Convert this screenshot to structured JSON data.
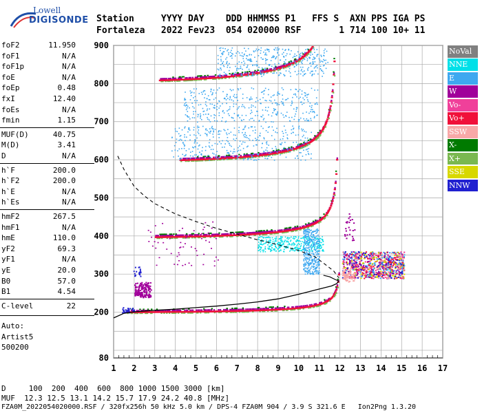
{
  "logo": {
    "line1": "Lowell",
    "line2": "DIGISONDE"
  },
  "header": {
    "line1": "Station     YYYY DAY    DDD HHMMSS P1   FFS S  AXN PPS IGA PS",
    "line2": "Fortaleza   2022 Fev23  054 020000 RSF       1 714 100 10+ 11"
  },
  "params": [
    {
      "name": "foF2",
      "value": "11.950"
    },
    {
      "name": "foF1",
      "value": "N/A"
    },
    {
      "name": "foF1p",
      "value": "N/A"
    },
    {
      "name": "foE",
      "value": "N/A"
    },
    {
      "name": "foEp",
      "value": "0.48"
    },
    {
      "name": "fxI",
      "value": "12.40"
    },
    {
      "name": "foEs",
      "value": "N/A"
    },
    {
      "name": "fmin",
      "value": "1.15"
    },
    {
      "name": "MUF(D)",
      "value": "40.75"
    },
    {
      "name": "M(D)",
      "value": "3.41"
    },
    {
      "name": "D",
      "value": "N/A"
    },
    {
      "name": "h`F",
      "value": "200.0"
    },
    {
      "name": "h`F2",
      "value": "200.0"
    },
    {
      "name": "h`E",
      "value": "N/A"
    },
    {
      "name": "h`Es",
      "value": "N/A"
    },
    {
      "name": "hmF2",
      "value": "267.5"
    },
    {
      "name": "hmF1",
      "value": "N/A"
    },
    {
      "name": "hmE",
      "value": "110.0"
    },
    {
      "name": "yF2",
      "value": "69.3"
    },
    {
      "name": "yF1",
      "value": "N/A"
    },
    {
      "name": "yE",
      "value": "20.0"
    },
    {
      "name": "B0",
      "value": "57.0"
    },
    {
      "name": "B1",
      "value": "4.54"
    },
    {
      "name": "C-level",
      "value": "22"
    }
  ],
  "auto": {
    "line1": "Auto:",
    "line2": "Artist5",
    "line3": "500200"
  },
  "legend": [
    {
      "label": "NoVal",
      "color": "#808080"
    },
    {
      "label": "NNE",
      "color": "#00e0e8"
    },
    {
      "label": "E",
      "color": "#3ea8f0"
    },
    {
      "label": "W",
      "color": "#a0009a"
    },
    {
      "label": "Vo-",
      "color": "#f0409a"
    },
    {
      "label": "Vo+",
      "color": "#f0103a"
    },
    {
      "label": "SSW",
      "color": "#f8a8a8"
    },
    {
      "label": "X-",
      "color": "#007a00"
    },
    {
      "label": "X+",
      "color": "#7ab850"
    },
    {
      "label": "SSE",
      "color": "#d8d800"
    },
    {
      "label": "NNW",
      "color": "#2020d0"
    }
  ],
  "footer": {
    "line1": "D     100  200  400  600  800 1000 1500 3000 [km]",
    "line2": "MUF  12.3 12.5 13.1 14.2 15.7 17.9 24.2 40.8 [MHz]",
    "line3": "FZA0M_2022054020000.RSF / 320fx256h 50 kHz 5.0 km / DPS-4 FZA0M 904 / 3.9 S 321.6 E   Ion2Png 1.3.20"
  },
  "chart_data": {
    "type": "scatter",
    "title": "",
    "xlabel": "",
    "ylabel": "",
    "xlim": [
      1,
      17
    ],
    "ylim": [
      80,
      900
    ],
    "xticks": [
      1,
      2,
      3,
      4,
      5,
      6,
      7,
      8,
      9,
      10,
      11,
      12,
      13,
      14,
      15,
      16,
      17
    ],
    "yticks": [
      80,
      200,
      300,
      400,
      500,
      600,
      700,
      800,
      900
    ],
    "grid": true,
    "traces": [
      {
        "name": "1F",
        "color": "#f0103a",
        "x0": 1.6,
        "h0": 202,
        "fc": 12.0
      },
      {
        "name": "2F",
        "color": "#f0103a",
        "x0": 3.0,
        "h0": 398,
        "fc": 11.9
      },
      {
        "name": "3F",
        "color": "#f0103a",
        "x0": 4.2,
        "h0": 598,
        "fc": 11.8
      },
      {
        "name": "4F",
        "color": "#f0103a",
        "x0": 3.2,
        "h0": 808,
        "fc": 11.5
      }
    ],
    "profile_solid": [
      [
        1.0,
        185
      ],
      [
        1.5,
        197
      ],
      [
        2,
        201
      ],
      [
        3,
        205
      ],
      [
        4,
        208
      ],
      [
        5,
        212
      ],
      [
        6,
        216
      ],
      [
        7,
        221
      ],
      [
        8,
        227
      ],
      [
        9,
        235
      ],
      [
        10,
        247
      ],
      [
        10.8,
        258
      ],
      [
        11.3,
        265
      ],
      [
        11.6,
        269
      ],
      [
        11.85,
        275
      ],
      [
        11.95,
        282
      ]
    ],
    "profile_dashed": [
      [
        1.2,
        610
      ],
      [
        1.5,
        575
      ],
      [
        2,
        530
      ],
      [
        2.5,
        505
      ],
      [
        3,
        485
      ],
      [
        4,
        458
      ],
      [
        5,
        438
      ],
      [
        6,
        420
      ],
      [
        7,
        405
      ],
      [
        8,
        390
      ],
      [
        9,
        377
      ],
      [
        10,
        362
      ],
      [
        10.8,
        345
      ],
      [
        11.3,
        325
      ],
      [
        11.7,
        308
      ],
      [
        11.95,
        290
      ]
    ],
    "cluster": {
      "xmin": 12.1,
      "xmax": 15.1,
      "ymin": 290,
      "ymax": 360
    }
  }
}
